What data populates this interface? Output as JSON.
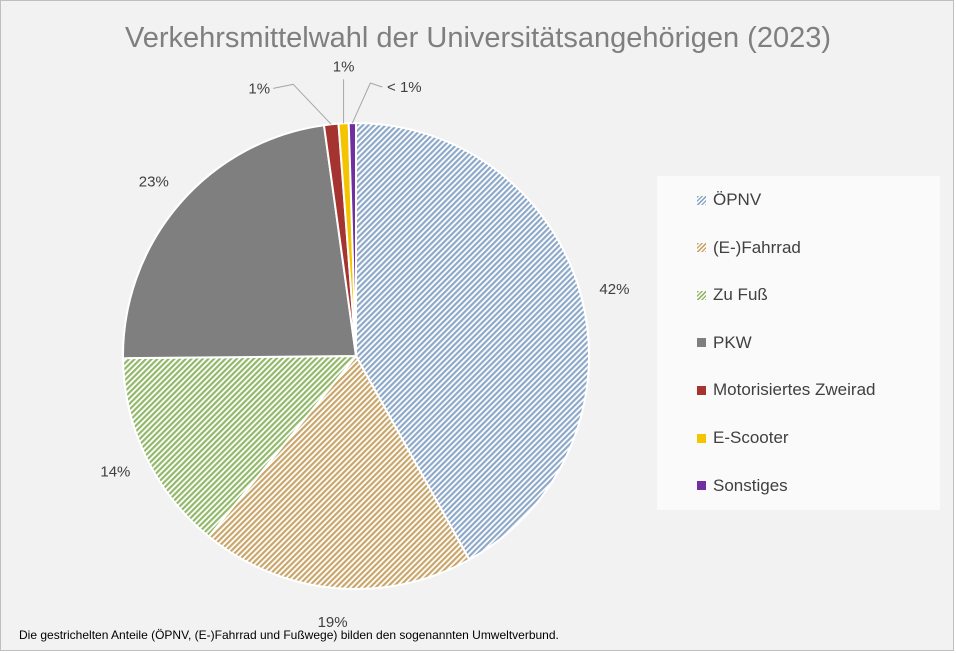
{
  "chart_data": {
    "type": "pie",
    "title": "Verkehrsmittelwahl der Universitätsangehörigen (2023)",
    "slices": [
      {
        "name": "ÖPNV",
        "value": 42,
        "label": "42%",
        "color": "#8ea9c8",
        "hatched": true
      },
      {
        "name": "(E-)Fahrrad",
        "value": 19,
        "label": "19%",
        "color": "#c9a66b",
        "hatched": true
      },
      {
        "name": "Zu Fuß",
        "value": 14,
        "label": "14%",
        "color": "#92b86a",
        "hatched": true
      },
      {
        "name": "PKW",
        "value": 23,
        "label": "23%",
        "color": "#7f7f7f",
        "hatched": false
      },
      {
        "name": "Motorisiertes Zweirad",
        "value": 1,
        "label": "1%",
        "color": "#a5332f",
        "hatched": false
      },
      {
        "name": "E-Scooter",
        "value": 0.7,
        "label": "1%",
        "color": "#f5c400",
        "hatched": false
      },
      {
        "name": "Sonstiges",
        "value": 0.5,
        "label": "< 1%",
        "color": "#7030a0",
        "hatched": false
      }
    ],
    "legend_position": "right",
    "footnote": "Die gestrichelten Anteile (ÖPNV, (E-)Fahrrad und Fußwege) bilden den sogenannten Umweltverbund."
  }
}
